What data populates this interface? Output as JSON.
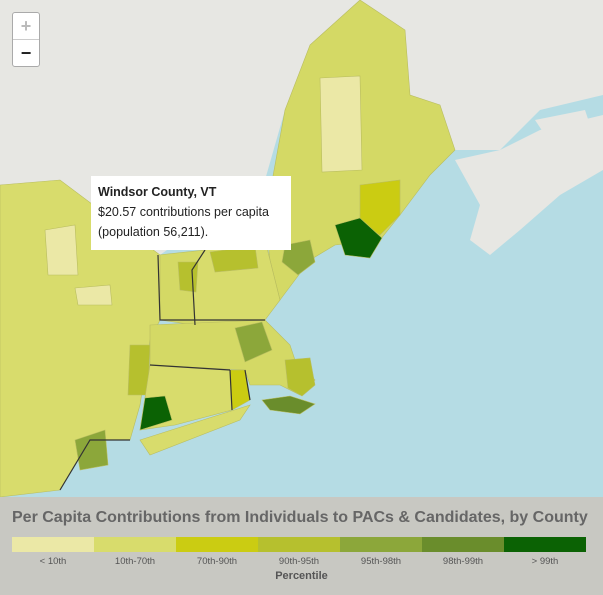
{
  "zoom": {
    "in": "+",
    "out": "−"
  },
  "tooltip": {
    "title": "Windsor County, VT",
    "line1": "$20.57 contributions per capita",
    "line2": "(population 56,211)."
  },
  "legend": {
    "title": "Per Capita Contributions from Individuals to PACs & Candidates, by County",
    "items": [
      {
        "label": "< 10th",
        "color": "#ebe8a6"
      },
      {
        "label": "10th-70th",
        "color": "#d8dc6c"
      },
      {
        "label": "70th-90th",
        "color": "#cbcc12"
      },
      {
        "label": "90th-95th",
        "color": "#b6c02e"
      },
      {
        "label": "95th-98th",
        "color": "#8ca73a"
      },
      {
        "label": "98th-99th",
        "color": "#6a8d2c"
      },
      {
        "label": "> 99th",
        "color": "#0b6204"
      }
    ],
    "axis_label": "Percentile"
  }
}
